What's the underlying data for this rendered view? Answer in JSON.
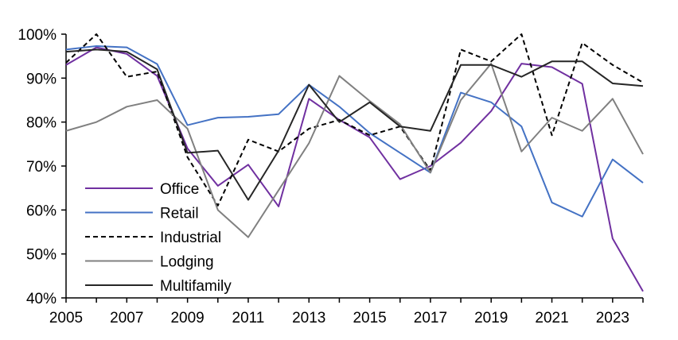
{
  "chart_data": {
    "type": "line",
    "title": "",
    "xlabel": "",
    "ylabel": "",
    "x": [
      2005,
      2006,
      2007,
      2008,
      2009,
      2010,
      2011,
      2012,
      2013,
      2014,
      2015,
      2016,
      2017,
      2018,
      2019,
      2020,
      2021,
      2022,
      2023,
      2024
    ],
    "xlim": [
      2005,
      2024
    ],
    "ylim": [
      40,
      100
    ],
    "x_ticks": [
      "2005",
      "2007",
      "2009",
      "2011",
      "2013",
      "2015",
      "2017",
      "2019",
      "2021",
      "2023"
    ],
    "y_ticks": [
      "100%",
      "90%",
      "80%",
      "70%",
      "60%",
      "50%",
      "40%"
    ],
    "legend_position": "bottom-left",
    "grid": false,
    "series": [
      {
        "name": "Office",
        "color": "#7030a0",
        "dash": "solid",
        "values": [
          93,
          97,
          95.5,
          90.5,
          74,
          65.5,
          70.3,
          60.8,
          85.3,
          80.5,
          76.5,
          67,
          70,
          75.3,
          82.5,
          93.3,
          92.5,
          88.7,
          53.5,
          41.5
        ]
      },
      {
        "name": "Retail",
        "color": "#4472c4",
        "dash": "solid",
        "values": [
          96.5,
          97.3,
          97,
          93.2,
          79.3,
          81,
          81.2,
          81.8,
          88.5,
          83.5,
          77.5,
          73,
          68.5,
          86.7,
          84.5,
          79,
          61.7,
          58.5,
          71.5,
          66.2
        ]
      },
      {
        "name": "Industrial",
        "color": "#000000",
        "dash": "dashed",
        "values": [
          93.5,
          100,
          90.3,
          91.5,
          72,
          61,
          76,
          73.3,
          78.5,
          80.5,
          77,
          79,
          69,
          96.5,
          93.8,
          100,
          77,
          98,
          93,
          89
        ]
      },
      {
        "name": "Lodging",
        "color": "#808080",
        "dash": "solid",
        "values": [
          78,
          80,
          83.5,
          85,
          78.5,
          60,
          53.8,
          64.5,
          75.2,
          90.5,
          84.8,
          79.5,
          68.5,
          85,
          93.3,
          73.3,
          81,
          78,
          85.3,
          72.7
        ]
      },
      {
        "name": "Multifamily",
        "color": "#262626",
        "dash": "solid",
        "values": [
          96,
          96.5,
          96,
          92,
          73,
          73.5,
          62.3,
          73.5,
          88.5,
          80,
          84.5,
          79,
          78,
          93,
          93,
          90.3,
          93.8,
          93.8,
          88.8,
          88.2
        ]
      }
    ]
  }
}
